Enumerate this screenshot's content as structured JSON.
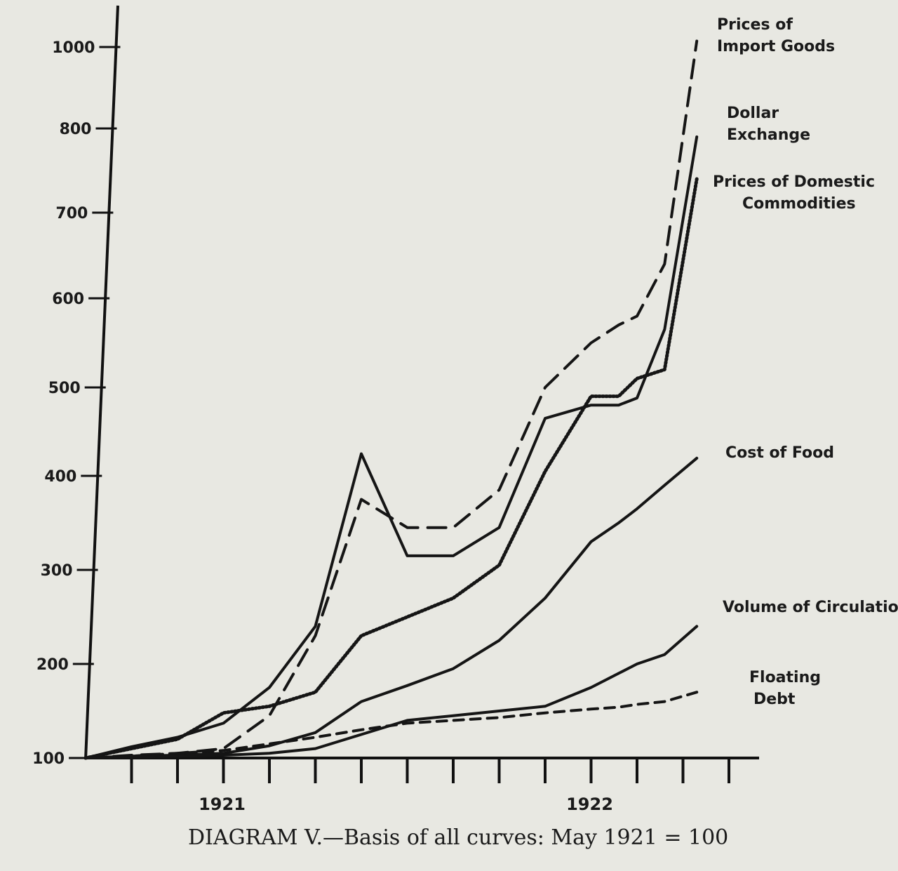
{
  "chart_data": {
    "type": "line",
    "caption": "DIAGRAM V.—Basis of all curves: May 1921 = 100",
    "ylim": [
      100,
      1000
    ],
    "yticks": [
      100,
      200,
      300,
      400,
      500,
      600,
      700,
      800,
      1000
    ],
    "xlim": [
      0,
      14
    ],
    "xticks": [
      0,
      1,
      2,
      3,
      4,
      5,
      6,
      7,
      8,
      9,
      10,
      11,
      12,
      13,
      14
    ],
    "xtick_labels": [
      {
        "x": 3,
        "label": "1921"
      },
      {
        "x": 11,
        "label": "1922"
      }
    ],
    "series": [
      {
        "name": "Prices of Import Goods",
        "style": "long-dash",
        "x": [
          0,
          1,
          2,
          3,
          4,
          5,
          6,
          7,
          8,
          9,
          10,
          11,
          11.6,
          12,
          12.6,
          13.3
        ],
        "y": [
          100,
          103,
          105,
          110,
          145,
          230,
          375,
          345,
          345,
          385,
          500,
          550,
          570,
          580,
          640,
          1015
        ]
      },
      {
        "name": "Dollar Exchange",
        "style": "solid",
        "x": [
          0,
          1,
          2,
          3,
          4,
          5,
          6,
          7,
          8,
          9,
          10,
          11,
          11.6,
          12,
          12.6,
          13.3
        ],
        "y": [
          100,
          112,
          122,
          137,
          175,
          240,
          425,
          315,
          315,
          345,
          465,
          480,
          480,
          488,
          565,
          790
        ]
      },
      {
        "name": "Prices of Domestic Commodities",
        "style": "dotted",
        "x": [
          0,
          1,
          2,
          3,
          4,
          5,
          6,
          7,
          8,
          9,
          10,
          11,
          11.6,
          12,
          12.6,
          13.3
        ],
        "y": [
          100,
          110,
          120,
          148,
          155,
          170,
          230,
          250,
          270,
          305,
          405,
          490,
          490,
          510,
          520,
          740
        ]
      },
      {
        "name": "Cost of Food",
        "style": "solid",
        "x": [
          0,
          1,
          2,
          3,
          4,
          5,
          6,
          7,
          8,
          9,
          10,
          11,
          11.6,
          12,
          12.6,
          13.3
        ],
        "y": [
          100,
          102,
          103,
          105,
          113,
          127,
          160,
          177,
          195,
          225,
          270,
          330,
          350,
          365,
          390,
          420
        ]
      },
      {
        "name": "Volume of Circulation",
        "style": "solid",
        "x": [
          0,
          1,
          2,
          3,
          4,
          5,
          6,
          7,
          8,
          9,
          10,
          11,
          11.6,
          12,
          12.6,
          13.3
        ],
        "y": [
          100,
          101,
          102,
          103,
          105,
          110,
          125,
          140,
          145,
          150,
          155,
          175,
          190,
          200,
          210,
          240
        ]
      },
      {
        "name": "Floating Debt",
        "style": "short-dash",
        "x": [
          0,
          1,
          2,
          3,
          4,
          5,
          6,
          7,
          8,
          9,
          10,
          11,
          11.6,
          12,
          12.6,
          13.3
        ],
        "y": [
          100,
          102,
          105,
          108,
          115,
          122,
          130,
          137,
          140,
          143,
          148,
          152,
          154,
          157,
          160,
          170
        ]
      }
    ]
  }
}
